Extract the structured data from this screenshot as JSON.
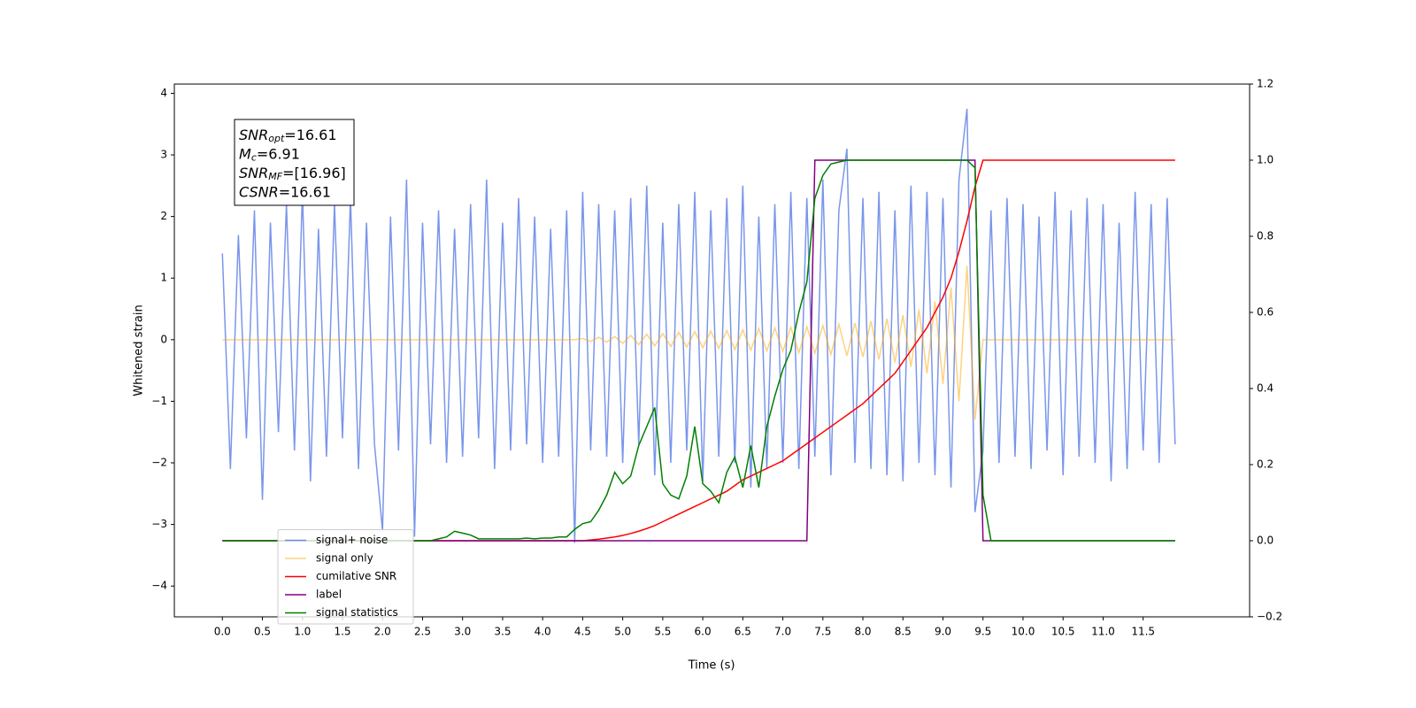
{
  "chart_data": {
    "type": "line",
    "ylabel": "Whitened strain",
    "xlabel": "Time (s)",
    "xlim": [
      -0.6,
      12.83
    ],
    "ylim": [
      -4.5,
      4.15
    ],
    "y2lim": [
      -0.2,
      1.2
    ],
    "xticks": [
      {
        "value": 0,
        "label": "0.0"
      },
      0.5,
      {
        "value": 1,
        "label": "1.0"
      },
      1.5,
      {
        "value": 2,
        "label": "2.0"
      },
      2.5,
      {
        "value": 3,
        "label": "3.0"
      },
      3.5,
      {
        "value": 4,
        "label": "4.0"
      },
      4.5,
      {
        "value": 5,
        "label": "5.0"
      },
      5.5,
      {
        "value": 6,
        "label": "6.0"
      },
      6.5,
      {
        "value": 7,
        "label": "7.0"
      },
      7.5,
      {
        "value": 8,
        "label": "8.0"
      },
      8.5,
      {
        "value": 9,
        "label": "9.0"
      },
      9.5,
      {
        "value": 10,
        "label": "10.0"
      },
      10.5,
      {
        "value": 11,
        "label": "11.0"
      },
      11.5
    ],
    "yticks": [
      {
        "value": -4,
        "label": "−4"
      },
      {
        "value": -3,
        "label": "−3"
      },
      {
        "value": -2,
        "label": "−2"
      },
      {
        "value": -1,
        "label": "−1"
      },
      0,
      1,
      2,
      3,
      4
    ],
    "y2ticks": [
      {
        "value": -0.2,
        "label": "−0.2"
      },
      {
        "value": 0,
        "label": "0.0"
      },
      0.2,
      0.4,
      0.6,
      0.8,
      {
        "value": 1,
        "label": "1.0"
      },
      1.2
    ],
    "legend": "lower left",
    "annotation": [
      {
        "main": "SNR",
        "sub": "opt",
        "rest": "=16.61"
      },
      {
        "main": "M",
        "sub": "c",
        "rest": "=6.91"
      },
      {
        "main": "SNR",
        "sub": "MF",
        "rest": "=[16.96]"
      },
      {
        "main": "CSNR",
        "rest": "=16.61"
      }
    ],
    "x": [
      0.0,
      0.1,
      0.2,
      0.3,
      0.4,
      0.5,
      0.6,
      0.7,
      0.8,
      0.9,
      1.0,
      1.1,
      1.2,
      1.3,
      1.4,
      1.5,
      1.6,
      1.7,
      1.8,
      1.9,
      2.0,
      2.1,
      2.2,
      2.3,
      2.4,
      2.5,
      2.6,
      2.7,
      2.8,
      2.9,
      3.0,
      3.1,
      3.2,
      3.3,
      3.4,
      3.5,
      3.6,
      3.7,
      3.8,
      3.9,
      4.0,
      4.1,
      4.2,
      4.3,
      4.4,
      4.5,
      4.6,
      4.7,
      4.8,
      4.9,
      5.0,
      5.1,
      5.2,
      5.3,
      5.4,
      5.5,
      5.6,
      5.7,
      5.8,
      5.9,
      6.0,
      6.1,
      6.2,
      6.3,
      6.4,
      6.5,
      6.6,
      6.7,
      6.8,
      6.9,
      7.0,
      7.1,
      7.2,
      7.3,
      7.4,
      7.5,
      7.6,
      7.7,
      7.8,
      7.9,
      8.0,
      8.1,
      8.2,
      8.3,
      8.4,
      8.5,
      8.6,
      8.7,
      8.8,
      8.9,
      9.0,
      9.1,
      9.2,
      9.3,
      9.4,
      9.5,
      9.6,
      9.7,
      9.8,
      9.9,
      10.0,
      10.1,
      10.2,
      10.3,
      10.4,
      10.5,
      10.6,
      10.7,
      10.8,
      10.9,
      11.0,
      11.1,
      11.2,
      11.3,
      11.4,
      11.5,
      11.6,
      11.7,
      11.8,
      11.9
    ],
    "series": [
      {
        "name": "signal+ noise",
        "color": "#4169e1",
        "alpha": 0.7,
        "values": [
          1.4,
          -2.1,
          1.7,
          -1.6,
          2.1,
          -2.6,
          1.9,
          -1.5,
          2.2,
          -1.8,
          2.4,
          -2.3,
          1.8,
          -1.9,
          2.2,
          -1.6,
          2.3,
          -2.1,
          1.9,
          -1.7,
          -3.1,
          2.0,
          -1.8,
          2.6,
          -3.2,
          1.9,
          -1.7,
          2.1,
          -2.0,
          1.8,
          -1.9,
          2.2,
          -1.6,
          2.6,
          -2.1,
          1.9,
          -1.8,
          2.3,
          -1.7,
          2.0,
          -2.0,
          1.8,
          -1.9,
          2.1,
          -3.3,
          2.4,
          -1.8,
          2.2,
          -1.9,
          2.1,
          -2.0,
          2.3,
          -1.7,
          2.5,
          -2.2,
          1.9,
          -2.0,
          2.2,
          -1.8,
          2.4,
          -2.3,
          2.1,
          -1.9,
          2.3,
          -2.0,
          2.5,
          -2.4,
          2.0,
          -2.1,
          2.2,
          -2.0,
          2.4,
          -2.1,
          2.3,
          -1.9,
          2.6,
          -2.2,
          2.1,
          3.1,
          -2.0,
          2.3,
          -2.1,
          2.4,
          -2.2,
          2.1,
          -2.3,
          2.5,
          -2.0,
          2.4,
          -2.2,
          2.3,
          -2.4,
          2.6,
          3.75,
          -2.8,
          -1.8,
          2.1,
          -2.0,
          2.3,
          -1.9,
          2.2,
          -2.1,
          2.0,
          -1.8,
          2.4,
          -2.2,
          2.1,
          -1.9,
          2.3,
          -2.0,
          2.2,
          -2.3,
          1.9,
          -2.1,
          2.4,
          -1.8,
          2.2,
          -2.0,
          2.3,
          -1.7
        ]
      },
      {
        "name": "signal only",
        "color": "#ffa500",
        "alpha": 0.5,
        "values": [
          0,
          0,
          0,
          0,
          0,
          0,
          0,
          0,
          0,
          0,
          0,
          0,
          0,
          0,
          0,
          0,
          0,
          0,
          0,
          0,
          0,
          0,
          0,
          0,
          0,
          0,
          0,
          0,
          0,
          0,
          0,
          0,
          0,
          0,
          0,
          0,
          0,
          0,
          0,
          0,
          0,
          0,
          0,
          0,
          0,
          0.02,
          -0.03,
          0.04,
          -0.04,
          0.05,
          -0.06,
          0.07,
          -0.08,
          0.09,
          -0.1,
          0.1,
          -0.11,
          0.12,
          -0.12,
          0.13,
          -0.13,
          0.14,
          -0.14,
          0.15,
          -0.16,
          0.16,
          -0.17,
          0.18,
          -0.18,
          0.19,
          -0.19,
          0.2,
          -0.21,
          0.21,
          -0.22,
          0.23,
          -0.24,
          0.25,
          -0.26,
          0.27,
          -0.28,
          0.3,
          -0.32,
          0.34,
          -0.37,
          0.4,
          -0.44,
          0.49,
          -0.55,
          0.62,
          -0.72,
          0.85,
          -1.0,
          1.2,
          -1.3,
          0,
          0,
          0,
          0,
          0,
          0,
          0,
          0,
          0,
          0,
          0,
          0,
          0,
          0,
          0,
          0,
          0,
          0,
          0,
          0,
          0,
          0,
          0,
          0,
          0
        ]
      },
      {
        "name": "cumilative SNR",
        "color": "#ff0000",
        "axis": "y2",
        "values": [
          0,
          0,
          0,
          0,
          0,
          0,
          0,
          0,
          0,
          0,
          0,
          0,
          0,
          0,
          0,
          0,
          0,
          0,
          0,
          0,
          0,
          0,
          0,
          0,
          0,
          0,
          0,
          0,
          0,
          0,
          0,
          0,
          0,
          0,
          0,
          0,
          0,
          0,
          0,
          0,
          0,
          0,
          0,
          0,
          0,
          0.0,
          0.002,
          0.004,
          0.007,
          0.01,
          0.014,
          0.019,
          0.025,
          0.032,
          0.04,
          0.05,
          0.06,
          0.07,
          0.08,
          0.09,
          0.1,
          0.11,
          0.12,
          0.13,
          0.145,
          0.16,
          0.17,
          0.18,
          0.19,
          0.2,
          0.21,
          0.225,
          0.24,
          0.255,
          0.27,
          0.285,
          0.3,
          0.315,
          0.33,
          0.345,
          0.36,
          0.38,
          0.4,
          0.42,
          0.44,
          0.47,
          0.5,
          0.53,
          0.56,
          0.6,
          0.64,
          0.69,
          0.76,
          0.84,
          0.93,
          1,
          1,
          1,
          1,
          1,
          1,
          1,
          1,
          1,
          1,
          1,
          1,
          1,
          1,
          1,
          1,
          1,
          1,
          1,
          1,
          1,
          1,
          1,
          1,
          1
        ]
      },
      {
        "name": "label",
        "color": "#800080",
        "axis": "y2",
        "values": [
          0,
          0,
          0,
          0,
          0,
          0,
          0,
          0,
          0,
          0,
          0,
          0,
          0,
          0,
          0,
          0,
          0,
          0,
          0,
          0,
          0,
          0,
          0,
          0,
          0,
          0,
          0,
          0,
          0,
          0,
          0,
          0,
          0,
          0,
          0,
          0,
          0,
          0,
          0,
          0,
          0,
          0,
          0,
          0,
          0,
          0,
          0,
          0,
          0,
          0,
          0,
          0,
          0,
          0,
          0,
          0,
          0,
          0,
          0,
          0,
          0,
          0,
          0,
          0,
          0,
          0,
          0,
          0,
          0,
          0,
          0,
          0,
          0,
          0,
          1,
          1,
          1,
          1,
          1,
          1,
          1,
          1,
          1,
          1,
          1,
          1,
          1,
          1,
          1,
          1,
          1,
          1,
          1,
          1,
          1,
          0,
          0,
          0,
          0,
          0,
          0,
          0,
          0,
          0,
          0,
          0,
          0,
          0,
          0,
          0,
          0,
          0,
          0,
          0,
          0,
          0,
          0,
          0,
          0,
          0
        ]
      },
      {
        "name": "signal statistics",
        "color": "#008000",
        "axis": "y2",
        "values": [
          0,
          0,
          0,
          0,
          0,
          0,
          0,
          0,
          0,
          0,
          0,
          0,
          0,
          0,
          0,
          0,
          0,
          0,
          0,
          0,
          0,
          0,
          0,
          0,
          0,
          0,
          0,
          0.005,
          0.01,
          0.025,
          0.02,
          0.015,
          0.005,
          0.005,
          0.005,
          0.005,
          0.005,
          0.005,
          0.007,
          0.005,
          0.007,
          0.007,
          0.01,
          0.01,
          0.03,
          0.045,
          0.05,
          0.08,
          0.12,
          0.18,
          0.15,
          0.17,
          0.25,
          0.3,
          0.35,
          0.15,
          0.12,
          0.11,
          0.17,
          0.3,
          0.15,
          0.13,
          0.1,
          0.18,
          0.22,
          0.14,
          0.25,
          0.14,
          0.3,
          0.38,
          0.45,
          0.5,
          0.6,
          0.68,
          0.9,
          0.96,
          0.99,
          0.995,
          1,
          1,
          1,
          1,
          1,
          1,
          1,
          1,
          1,
          1,
          1,
          1,
          1,
          1,
          1,
          1,
          0.98,
          0.12,
          0,
          0,
          0,
          0,
          0,
          0,
          0,
          0,
          0,
          0,
          0,
          0,
          0,
          0,
          0,
          0,
          0,
          0,
          0,
          0,
          0,
          0,
          0,
          0
        ]
      }
    ]
  }
}
